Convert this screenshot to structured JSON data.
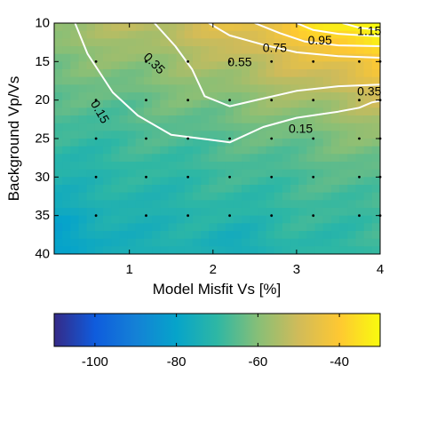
{
  "chart_data": [
    {
      "type": "heatmap",
      "xlabel": "Model Misfit Vs [%]",
      "ylabel": "Background Vp/Vs",
      "xlim": [
        0.1,
        4
      ],
      "ylim": [
        10,
        40
      ],
      "y_reversed": true,
      "x_ticks": [
        "1",
        "2",
        "3",
        "4"
      ],
      "y_ticks": [
        "10",
        "15",
        "20",
        "25",
        "30",
        "35",
        "40"
      ],
      "x_tick_values": [
        1,
        2,
        3,
        4
      ],
      "y_tick_values": [
        10,
        15,
        20,
        25,
        30,
        35,
        40
      ],
      "grid": false,
      "colormap": "parula",
      "color_range": [
        -110,
        -30
      ],
      "field_description": "values highest (~-30) at top-right (small Vp/Vs, large misfit) decreasing toward bottom-left (~-75)",
      "contours": [
        {
          "label": "0.15",
          "x": [
            0.35,
            0.5,
            0.8,
            1.1,
            1.5,
            2.0,
            2.2,
            2.6,
            3.0,
            3.5,
            3.75,
            3.9,
            4.0
          ],
          "y": [
            10,
            14,
            19,
            22,
            24.5,
            25.2,
            25.5,
            23.5,
            22.3,
            21.5,
            21.0,
            20.3,
            20.1
          ]
        },
        {
          "label": "0.35",
          "x": [
            1.3,
            1.55,
            1.75,
            1.9,
            2.2,
            2.6,
            3.0,
            3.5,
            4.0
          ],
          "y": [
            10,
            13,
            16,
            19.5,
            20.8,
            19.8,
            18.8,
            18.2,
            18.0
          ]
        },
        {
          "label": "0.55",
          "x": [
            1.95,
            2.2,
            2.6,
            3.0,
            3.5,
            4.0
          ],
          "y": [
            10,
            11.6,
            12.8,
            13.8,
            14.3,
            14.5
          ]
        },
        {
          "label": "0.75",
          "x": [
            2.5,
            2.8,
            3.1,
            3.5,
            4.0
          ],
          "y": [
            10,
            11.3,
            12.4,
            12.9,
            13.0
          ]
        },
        {
          "label": "0.95",
          "x": [
            3.0,
            3.2,
            3.5,
            3.8,
            4.0
          ],
          "y": [
            10,
            10.9,
            11.4,
            11.6,
            11.7
          ]
        },
        {
          "label": "1.15",
          "x": [
            3.55,
            3.75,
            4.0
          ],
          "y": [
            10,
            10.6,
            10.9
          ]
        }
      ],
      "contour_labels": [
        {
          "text": "1.15",
          "x": 3.87,
          "y": 11.0
        },
        {
          "text": "0.95",
          "x": 3.28,
          "y": 12.2
        },
        {
          "text": "0.75",
          "x": 2.74,
          "y": 13.2
        },
        {
          "text": "0.55",
          "x": 2.32,
          "y": 15.0
        },
        {
          "text": "0.35",
          "x": 1.3,
          "y": 15.2,
          "angle": 45
        },
        {
          "text": "0.35",
          "x": 3.87,
          "y": 18.8
        },
        {
          "text": "0.15",
          "x": 0.65,
          "y": 21.5,
          "angle": 60
        },
        {
          "text": "0.15",
          "x": 3.05,
          "y": 23.7
        }
      ],
      "markers": {
        "x": [
          0.6,
          1.2,
          1.7,
          2.2,
          2.7,
          3.2,
          3.75,
          4.0
        ],
        "y": [
          15,
          20,
          25,
          30,
          35
        ]
      }
    },
    {
      "type": "colorbar",
      "range": [
        -110,
        -30
      ],
      "ticks": [
        "-100",
        "-80",
        "-60",
        "-40"
      ],
      "tick_values": [
        -100,
        -80,
        -60,
        -40
      ],
      "colormap": "parula"
    }
  ]
}
